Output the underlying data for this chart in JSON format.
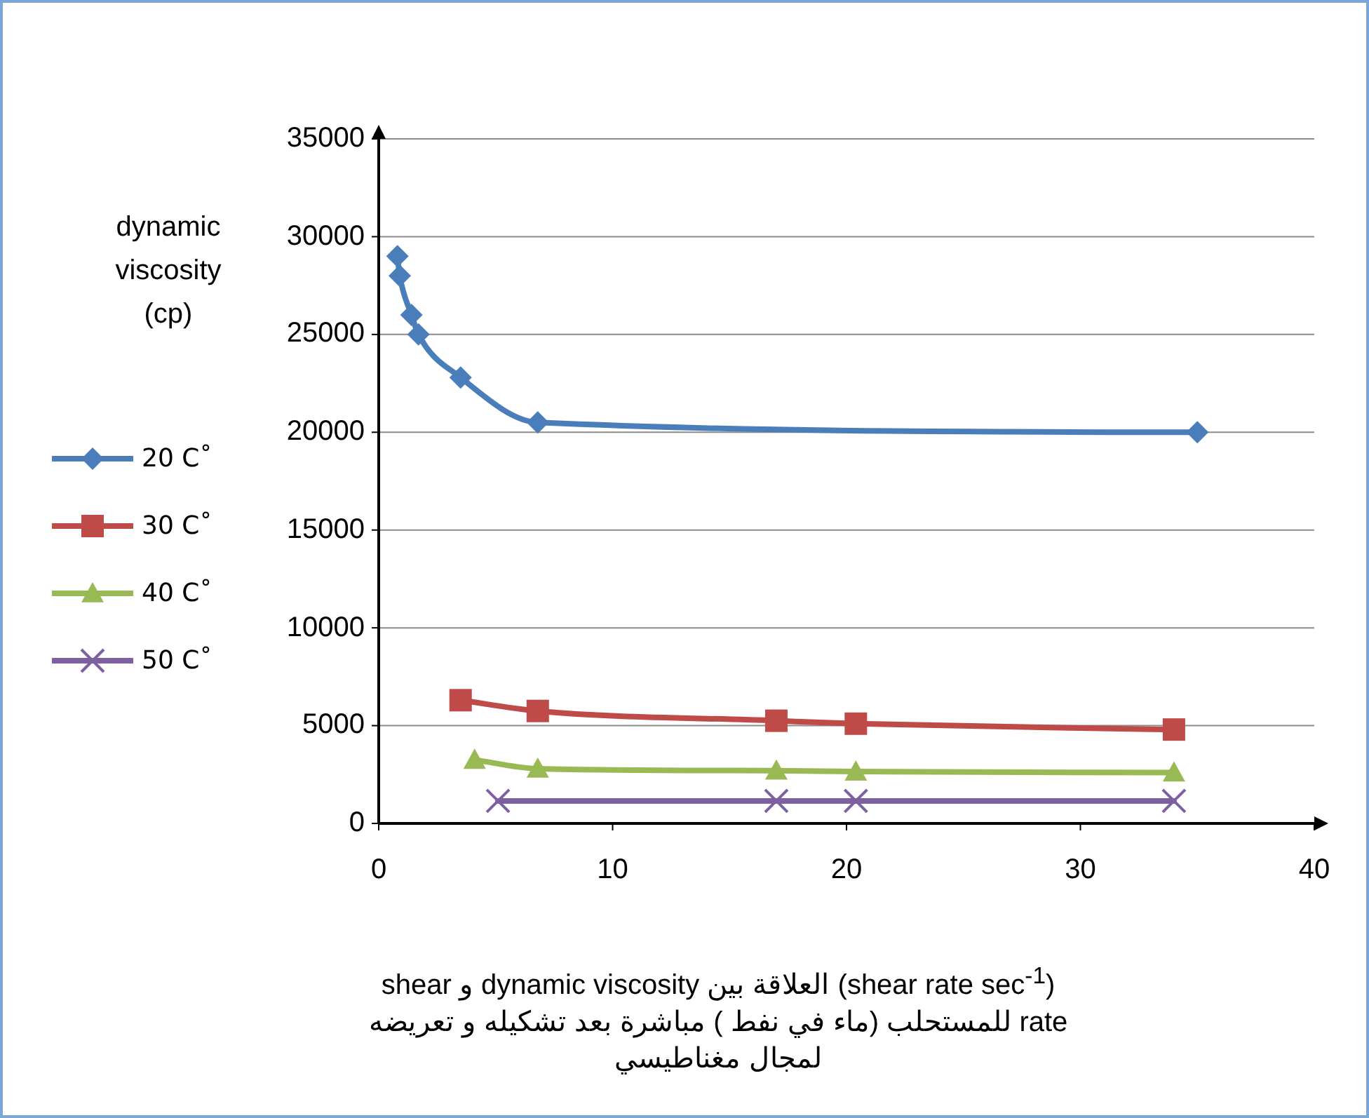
{
  "chart_data": {
    "type": "line",
    "ylabel": "dynamic viscosity (cp)",
    "xlabel": "(shear rate sec$^{-1}$) العلاقة بين dynamic viscosity و shear rate للمستحلب (ماء في نفط ) مباشرة بعد تشكيله و تعريضه لمجال مغناطيسي",
    "xlim": [
      0,
      40
    ],
    "xticks": [
      0,
      10,
      20,
      30,
      40
    ],
    "ylim": [
      0,
      35000
    ],
    "yticks": [
      0,
      5000,
      10000,
      15000,
      20000,
      25000,
      30000,
      35000
    ],
    "grid": "y",
    "legend": "left",
    "series": [
      {
        "name": "20 Cْ",
        "color": "#4a7ebb",
        "marker": "diamond",
        "x": [
          0.8,
          0.9,
          1.4,
          1.7,
          3.5,
          6.8,
          35
        ],
        "values": [
          29000,
          28000,
          26000,
          25000,
          22800,
          20500,
          20000
        ]
      },
      {
        "name": "30 Cْ",
        "color": "#be4b48",
        "marker": "square",
        "x": [
          3.5,
          6.8,
          17,
          20.4,
          34
        ],
        "values": [
          6300,
          5750,
          5250,
          5100,
          4800
        ]
      },
      {
        "name": "40 Cْ",
        "color": "#98b954",
        "marker": "triangle",
        "x": [
          4.1,
          6.8,
          17,
          20.4,
          34
        ],
        "values": [
          3250,
          2800,
          2700,
          2650,
          2600
        ]
      },
      {
        "name": "50 Cْ",
        "color": "#7d60a0",
        "marker": "cross",
        "x": [
          5.1,
          17,
          20.4,
          34
        ],
        "values": [
          1150,
          1150,
          1150,
          1150
        ]
      }
    ]
  }
}
